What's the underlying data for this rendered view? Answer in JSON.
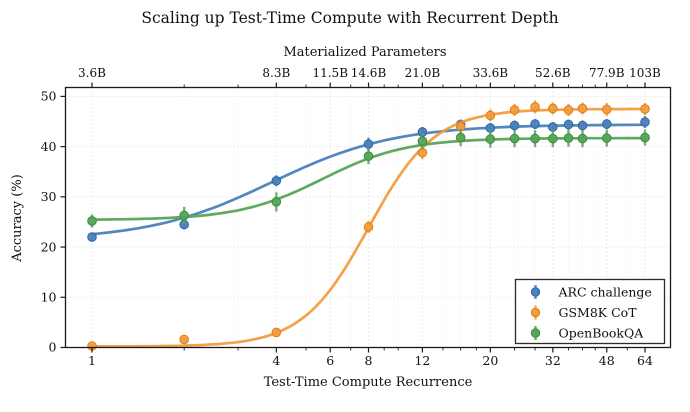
{
  "chart_data": {
    "type": "line",
    "title": "Scaling up Test-Time Compute with Recurrent Depth",
    "xlabel": "Test-Time Compute Recurrence",
    "ylabel": "Accuracy (%)",
    "top_axis_label": "Materialized Parameters",
    "x_scale": "log2",
    "xlim": [
      0.82,
      78
    ],
    "ylim": [
      0,
      51.7
    ],
    "grid": "both-dotted",
    "legend_position": "lower right",
    "x_major_ticks": [
      1,
      4,
      6,
      8,
      12,
      20,
      32,
      48,
      64
    ],
    "x_major_tick_labels": [
      "1",
      "4",
      "6",
      "8",
      "12",
      "20",
      "32",
      "48",
      "64"
    ],
    "x_minor_ticks": [
      2,
      3,
      5,
      7,
      9,
      10,
      14,
      16,
      18,
      24,
      28,
      36,
      40,
      44,
      56
    ],
    "top_tick_values": [
      1,
      4,
      6,
      8,
      12,
      20,
      32,
      48,
      64
    ],
    "top_tick_labels": [
      "3.6B",
      "8.3B",
      "11.5B",
      "14.6B",
      "21.0B",
      "33.6B",
      "52.6B",
      "77.9B",
      "103B"
    ],
    "y_ticks": [
      0,
      10,
      20,
      30,
      40,
      50
    ],
    "y_tick_labels": [
      "0",
      "10",
      "20",
      "30",
      "40",
      "50"
    ],
    "x": [
      1,
      2,
      4,
      8,
      12,
      16,
      20,
      24,
      28,
      32,
      36,
      40,
      48,
      64
    ],
    "series": [
      {
        "name": "ARC challenge",
        "color": "#4a81bd",
        "edge_color": "#2f66a3",
        "values": [
          22.0,
          24.5,
          33.2,
          40.5,
          42.9,
          44.4,
          43.7,
          44.2,
          44.5,
          43.9,
          44.4,
          44.2,
          44.5,
          44.9
        ],
        "yerr": [
          0.9,
          1.0,
          1.1,
          1.3,
          1.0,
          1.0,
          1.0,
          1.0,
          1.0,
          1.0,
          1.0,
          1.0,
          1.0,
          1.2
        ],
        "fit": {
          "lo": 21.4,
          "hi": 44.4,
          "t0": 1.95,
          "k": 1.5
        }
      },
      {
        "name": "GSM8K CoT",
        "color": "#f39c3d",
        "edge_color": "#dd7f16",
        "values": [
          0.3,
          1.6,
          3.0,
          24.0,
          38.8,
          44.0,
          46.2,
          47.3,
          47.9,
          47.6,
          47.3,
          47.6,
          47.4,
          47.5
        ],
        "yerr": [
          0.3,
          0.5,
          0.7,
          1.2,
          1.3,
          1.2,
          1.2,
          1.2,
          1.3,
          1.2,
          1.2,
          1.2,
          1.3,
          1.2
        ],
        "fit": {
          "lo": 0.2,
          "hi": 47.5,
          "t0": 3.0,
          "k": 2.8
        }
      },
      {
        "name": "OpenBookQA",
        "color": "#57a457",
        "edge_color": "#3c8a3e",
        "values": [
          25.2,
          26.3,
          29.0,
          38.1,
          41.1,
          41.8,
          41.5,
          41.6,
          41.6,
          41.6,
          41.7,
          41.6,
          41.7,
          41.8
        ],
        "yerr": [
          1.3,
          1.7,
          1.9,
          1.6,
          1.6,
          1.7,
          1.7,
          1.7,
          1.7,
          1.7,
          1.7,
          1.7,
          1.7,
          1.6
        ],
        "fit": {
          "lo": 25.4,
          "hi": 41.7,
          "t0": 2.5,
          "k": 2.2
        }
      }
    ],
    "style_colors": {
      "spine": "#1a1a1a",
      "grid_major": "#d8d8d8",
      "grid_minor": "#ebebeb",
      "legend_border": "#2b2b2b",
      "legend_bg": "#ffffff"
    }
  }
}
